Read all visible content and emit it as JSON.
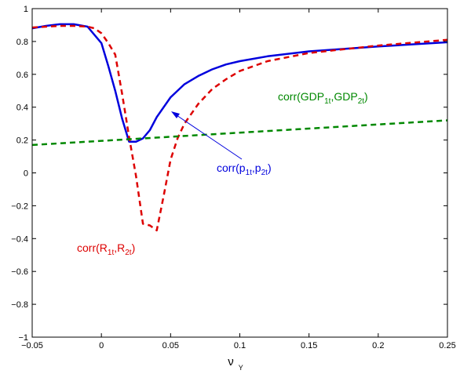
{
  "chart_data": {
    "type": "line",
    "xlabel": "ν",
    "xlabel_sub": "Y",
    "ylabel": "",
    "title": "",
    "xlim": [
      -0.05,
      0.25
    ],
    "ylim": [
      -1,
      1
    ],
    "xticks": [
      -0.05,
      0,
      0.05,
      0.1,
      0.15,
      0.2,
      0.25
    ],
    "xtick_labels": [
      "−0.05",
      "0",
      "0.05",
      "0.1",
      "0.15",
      "0.2",
      "0.25"
    ],
    "yticks": [
      -1,
      -0.8,
      -0.6,
      -0.4,
      -0.2,
      0,
      0.2,
      0.4,
      0.6,
      0.8,
      1
    ],
    "ytick_labels": [
      "−1",
      "−0.8",
      "−0.6",
      "−0.4",
      "−0.2",
      "0",
      "0.2",
      "0.4",
      "0.6",
      "0.8",
      "1"
    ],
    "grid": false,
    "series": [
      {
        "name": "corr(p1t,p2t)",
        "color": "#0000dd",
        "dash": "solid",
        "x": [
          -0.05,
          -0.04,
          -0.03,
          -0.02,
          -0.01,
          0,
          0.005,
          0.01,
          0.015,
          0.02,
          0.025,
          0.03,
          0.035,
          0.04,
          0.05,
          0.06,
          0.07,
          0.08,
          0.09,
          0.1,
          0.12,
          0.15,
          0.2,
          0.25
        ],
        "y": [
          0.88,
          0.895,
          0.905,
          0.905,
          0.89,
          0.79,
          0.65,
          0.5,
          0.33,
          0.19,
          0.19,
          0.21,
          0.26,
          0.34,
          0.46,
          0.54,
          0.59,
          0.63,
          0.66,
          0.68,
          0.71,
          0.74,
          0.77,
          0.795
        ]
      },
      {
        "name": "corr(R1t,R2t)",
        "color": "#dd0000",
        "dash": "dashed",
        "x": [
          -0.05,
          -0.04,
          -0.03,
          -0.02,
          -0.01,
          -0.005,
          0,
          0.005,
          0.01,
          0.015,
          0.02,
          0.025,
          0.03,
          0.035,
          0.04,
          0.045,
          0.05,
          0.055,
          0.06,
          0.07,
          0.08,
          0.09,
          0.1,
          0.12,
          0.15,
          0.2,
          0.25
        ],
        "y": [
          0.885,
          0.89,
          0.895,
          0.895,
          0.89,
          0.88,
          0.85,
          0.79,
          0.72,
          0.48,
          0.22,
          -0.02,
          -0.31,
          -0.32,
          -0.35,
          -0.14,
          0.08,
          0.21,
          0.3,
          0.42,
          0.51,
          0.57,
          0.62,
          0.68,
          0.73,
          0.775,
          0.81
        ]
      },
      {
        "name": "corr(GDP1t,GDP2t)",
        "color": "#008800",
        "dash": "dashed",
        "x": [
          -0.05,
          0.25
        ],
        "y": [
          0.17,
          0.32
        ]
      }
    ],
    "annotations": [
      {
        "id": "gdp",
        "text_pre": "corr(GDP",
        "sub1": "1t",
        "text_mid": ",GDP",
        "sub2": "2t",
        "text_post": ")",
        "color": "#008800"
      },
      {
        "id": "p",
        "text_pre": "corr(p",
        "sub1": "1t",
        "text_mid": ",p",
        "sub2": "2t",
        "text_post": ")",
        "color": "#0000dd"
      },
      {
        "id": "r",
        "text_pre": "corr(R",
        "sub1": "1t",
        "text_mid": ",R",
        "sub2": "2t",
        "text_post": ")",
        "color": "#dd0000"
      }
    ]
  }
}
